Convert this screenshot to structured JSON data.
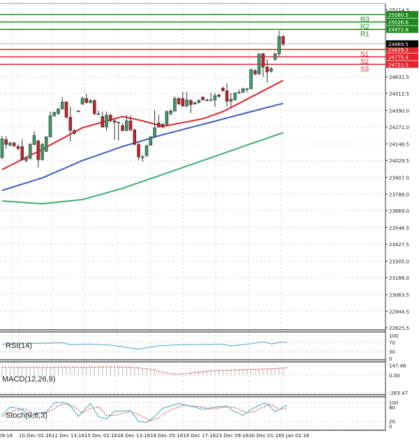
{
  "chart_data": {
    "type": "candlestick",
    "price_axis": {
      "ticks": [
        "25114.5",
        "24631.5",
        "24512.5",
        "24390.0",
        "24271.0",
        "24148.5",
        "24029.5",
        "23907.0",
        "23788.0",
        "23669.0",
        "23546.5",
        "23427.5",
        "23305.0",
        "23186.0",
        "23063.5",
        "22944.5",
        "22825.5"
      ],
      "range": [
        22825.5,
        25114.5
      ]
    },
    "time_axis": {
      "ticks": [
        "09:16",
        "10 Dec 01:16",
        "11 Dec 13:16",
        "15 Dec 01:16",
        "16 Dec 13:16",
        "18 Dec 05:16",
        "19 Dec 17:16",
        "23 Dec 09:16",
        "30 Dec 01:16",
        "5 Jan 01:16"
      ]
    },
    "grid": true,
    "colors": {
      "up": "#3c9a6a",
      "down": "#c8202a",
      "ma_fast": "#e0262b",
      "ma_mid": "#3b5fbf",
      "ma_slow": "#3fae6f",
      "resistance": "#1e8a1e",
      "support": "#e0262b",
      "current": "#000000",
      "rsi": "#4aa3c8",
      "stoch_k": "#45aab5",
      "stoch_d": "#c8202a"
    },
    "candles_ohlc": [
      [
        24050,
        24205,
        24040,
        24185
      ],
      [
        24180,
        24205,
        24115,
        24145
      ],
      [
        24140,
        24165,
        24130,
        24155
      ],
      [
        24155,
        24165,
        24125,
        24135
      ],
      [
        24130,
        24145,
        24105,
        24115
      ],
      [
        24130,
        24185,
        24030,
        24035
      ],
      [
        24030,
        24055,
        24015,
        24045
      ],
      [
        24045,
        24155,
        24035,
        24145
      ],
      [
        24145,
        24240,
        24140,
        24210
      ],
      [
        24170,
        24180,
        23979,
        24035
      ],
      [
        24035,
        24155,
        24030,
        24145
      ],
      [
        24095,
        24205,
        24090,
        24200
      ],
      [
        24200,
        24381,
        24195,
        24351
      ],
      [
        24351,
        24381,
        24346,
        24376
      ],
      [
        24366,
        24406,
        24361,
        24401
      ],
      [
        24401,
        24486,
        24396,
        24451
      ],
      [
        24451,
        24456,
        24331,
        24341
      ],
      [
        24341,
        24416,
        24165,
        24245
      ],
      [
        24245,
        24255,
        24215,
        24225
      ],
      [
        24386,
        24391,
        24381,
        24386
      ],
      [
        24436,
        24491,
        24431,
        24476
      ],
      [
        24476,
        24511,
        24441,
        24446
      ],
      [
        24446,
        24471,
        24441,
        24461
      ],
      [
        24461,
        24471,
        24356,
        24366
      ],
      [
        24366,
        24386,
        24356,
        24366
      ],
      [
        24346,
        24381,
        24265,
        24270
      ],
      [
        24270,
        24381,
        24245,
        24356
      ],
      [
        24356,
        24366,
        24305,
        24315
      ],
      [
        24315,
        24330,
        24180,
        24305
      ],
      [
        24305,
        24310,
        24175,
        24305
      ],
      [
        24280,
        24300,
        24240,
        24245
      ],
      [
        24245,
        24356,
        24240,
        24315
      ],
      [
        24315,
        24356,
        24240,
        24250
      ],
      [
        24250,
        24260,
        24140,
        24145
      ],
      [
        24145,
        24155,
        24030,
        24055
      ],
      [
        24055,
        24070,
        24020,
        24055
      ],
      [
        24065,
        24145,
        24055,
        24135
      ],
      [
        24140,
        24205,
        24135,
        24200
      ],
      [
        24200,
        24391,
        24195,
        24265
      ],
      [
        24300,
        24356,
        24265,
        24270
      ],
      [
        24290,
        24300,
        24260,
        24270
      ],
      [
        24290,
        24391,
        24280,
        24381
      ],
      [
        24366,
        24396,
        24356,
        24386
      ],
      [
        24386,
        24491,
        24381,
        24476
      ],
      [
        24476,
        24486,
        24431,
        24436
      ],
      [
        24476,
        24521,
        24416,
        24421
      ],
      [
        24421,
        24521,
        24416,
        24466
      ],
      [
        24461,
        24471,
        24371,
        24431
      ],
      [
        24436,
        24451,
        24431,
        24446
      ],
      [
        24446,
        24471,
        24441,
        24461
      ],
      [
        24486,
        24491,
        24461,
        24466
      ],
      [
        24466,
        24476,
        24456,
        24466
      ],
      [
        24466,
        24516,
        24461,
        24466
      ],
      [
        24466,
        24516,
        24416,
        24496
      ],
      [
        24501,
        24511,
        24481,
        24491
      ],
      [
        24551,
        24561,
        24526,
        24531
      ],
      [
        24531,
        24586,
        24416,
        24456
      ],
      [
        24456,
        24516,
        24406,
        24471
      ],
      [
        24466,
        24521,
        24461,
        24516
      ],
      [
        24516,
        24541,
        24511,
        24521
      ],
      [
        24521,
        24556,
        24516,
        24546
      ],
      [
        24546,
        24551,
        24521,
        24546
      ],
      [
        24546,
        24692,
        24541,
        24682
      ],
      [
        24677,
        24687,
        24641,
        24652
      ],
      [
        24652,
        24797,
        24647,
        24797
      ],
      [
        24797,
        24807,
        24631,
        24702
      ],
      [
        24702,
        24757,
        24591,
        24667
      ],
      [
        24672,
        24702,
        24662,
        24692
      ],
      [
        24757,
        24807,
        24747,
        24797
      ],
      [
        24797,
        24963,
        24782,
        24922
      ],
      [
        24922,
        24932,
        24852,
        24867
      ]
    ],
    "moving_averages": {
      "fast": [
        [
          0,
          23964
        ],
        [
          10,
          24110
        ],
        [
          20,
          24265
        ],
        [
          30,
          24346
        ],
        [
          35,
          24315
        ],
        [
          40,
          24275
        ],
        [
          50,
          24330
        ],
        [
          55,
          24381
        ],
        [
          60,
          24456
        ],
        [
          65,
          24531
        ],
        [
          70,
          24606
        ]
      ],
      "mid": [
        [
          0,
          23814
        ],
        [
          10,
          23904
        ],
        [
          20,
          24029
        ],
        [
          30,
          24130
        ],
        [
          40,
          24215
        ],
        [
          50,
          24290
        ],
        [
          60,
          24366
        ],
        [
          70,
          24441
        ]
      ],
      "slow": [
        [
          0,
          23738
        ],
        [
          10,
          23718
        ],
        [
          20,
          23748
        ],
        [
          30,
          23829
        ],
        [
          40,
          23929
        ],
        [
          50,
          24029
        ],
        [
          60,
          24130
        ],
        [
          70,
          24230
        ]
      ]
    },
    "current_price": {
      "value": 24869.5,
      "label": "24869.5"
    },
    "pivots": [
      {
        "name": "R3",
        "value": 25080.5,
        "label": "25080.5",
        "type": "resistance"
      },
      {
        "name": "R2",
        "value": 25026.6,
        "label": "25026.6",
        "type": "resistance"
      },
      {
        "name": "R1",
        "value": 24972.8,
        "label": "24972.8",
        "type": "resistance"
      },
      {
        "name": "S1",
        "value": 24829.2,
        "label": "24829.2",
        "type": "support"
      },
      {
        "name": "S2",
        "value": 24775.4,
        "label": "24775.4",
        "type": "support"
      },
      {
        "name": "S3",
        "value": 24721.5,
        "label": "24721.5",
        "type": "support"
      }
    ],
    "indicators": {
      "rsi": {
        "label": "RSI(14)",
        "ticks": [
          "100",
          "70",
          "30",
          "0"
        ],
        "range": [
          0,
          100
        ],
        "values": [
          [
            0,
            62
          ],
          [
            10,
            66
          ],
          [
            15,
            68
          ],
          [
            17,
            60
          ],
          [
            22,
            62
          ],
          [
            27,
            58
          ],
          [
            34,
            40
          ],
          [
            39,
            55
          ],
          [
            45,
            60
          ],
          [
            55,
            61
          ],
          [
            57,
            55
          ],
          [
            62,
            64
          ],
          [
            65,
            72
          ],
          [
            67,
            63
          ],
          [
            70,
            72
          ],
          [
            71,
            68
          ]
        ]
      },
      "macd": {
        "label": "MACD(12,26,9)",
        "ticks": [
          "147.46",
          "0.00",
          "-263.47"
        ],
        "range": [
          -263.47,
          147.46
        ],
        "histogram": [
          [
            0,
            110
          ],
          [
            10,
            112
          ],
          [
            20,
            120
          ],
          [
            28,
            128
          ],
          [
            32,
            122
          ],
          [
            36,
            95
          ],
          [
            38,
            70
          ],
          [
            40,
            40
          ],
          [
            41,
            5
          ],
          [
            42,
            0
          ],
          [
            46,
            0
          ],
          [
            47,
            50
          ],
          [
            52,
            85
          ],
          [
            60,
            92
          ],
          [
            66,
            100
          ],
          [
            71,
            115
          ]
        ],
        "signal": [
          [
            0,
            118
          ],
          [
            10,
            115
          ],
          [
            20,
            120
          ],
          [
            28,
            124
          ],
          [
            34,
            110
          ],
          [
            38,
            80
          ],
          [
            40,
            45
          ],
          [
            42,
            20
          ],
          [
            44,
            15
          ],
          [
            47,
            30
          ],
          [
            52,
            65
          ],
          [
            60,
            80
          ],
          [
            66,
            95
          ],
          [
            71,
            110
          ]
        ]
      },
      "stoch": {
        "label": "Stoch(9,6,3)",
        "ticks": [
          "100",
          "80",
          "20",
          "0"
        ],
        "range": [
          0,
          100
        ],
        "k": [
          [
            0,
            45
          ],
          [
            2,
            80
          ],
          [
            5,
            72
          ],
          [
            7,
            35
          ],
          [
            8,
            50
          ],
          [
            11,
            60
          ],
          [
            13,
            98
          ],
          [
            15,
            100
          ],
          [
            17,
            85
          ],
          [
            19,
            40
          ],
          [
            20,
            60
          ],
          [
            22,
            95
          ],
          [
            24,
            40
          ],
          [
            26,
            30
          ],
          [
            28,
            62
          ],
          [
            32,
            65
          ],
          [
            34,
            20
          ],
          [
            36,
            15
          ],
          [
            38,
            40
          ],
          [
            40,
            75
          ],
          [
            44,
            95
          ],
          [
            48,
            80
          ],
          [
            50,
            70
          ],
          [
            53,
            80
          ],
          [
            56,
            85
          ],
          [
            57,
            70
          ],
          [
            60,
            45
          ],
          [
            62,
            70
          ],
          [
            65,
            95
          ],
          [
            66,
            95
          ],
          [
            68,
            60
          ],
          [
            70,
            80
          ],
          [
            71,
            88
          ]
        ],
        "d": [
          [
            0,
            40
          ],
          [
            3,
            65
          ],
          [
            6,
            72
          ],
          [
            8,
            50
          ],
          [
            11,
            55
          ],
          [
            14,
            85
          ],
          [
            16,
            98
          ],
          [
            18,
            80
          ],
          [
            20,
            55
          ],
          [
            22,
            75
          ],
          [
            24,
            80
          ],
          [
            26,
            45
          ],
          [
            28,
            45
          ],
          [
            32,
            62
          ],
          [
            35,
            40
          ],
          [
            37,
            22
          ],
          [
            39,
            35
          ],
          [
            41,
            60
          ],
          [
            45,
            88
          ],
          [
            49,
            82
          ],
          [
            52,
            72
          ],
          [
            56,
            80
          ],
          [
            58,
            78
          ],
          [
            61,
            55
          ],
          [
            63,
            62
          ],
          [
            66,
            88
          ],
          [
            67,
            92
          ],
          [
            69,
            70
          ],
          [
            71,
            75
          ]
        ]
      }
    }
  }
}
